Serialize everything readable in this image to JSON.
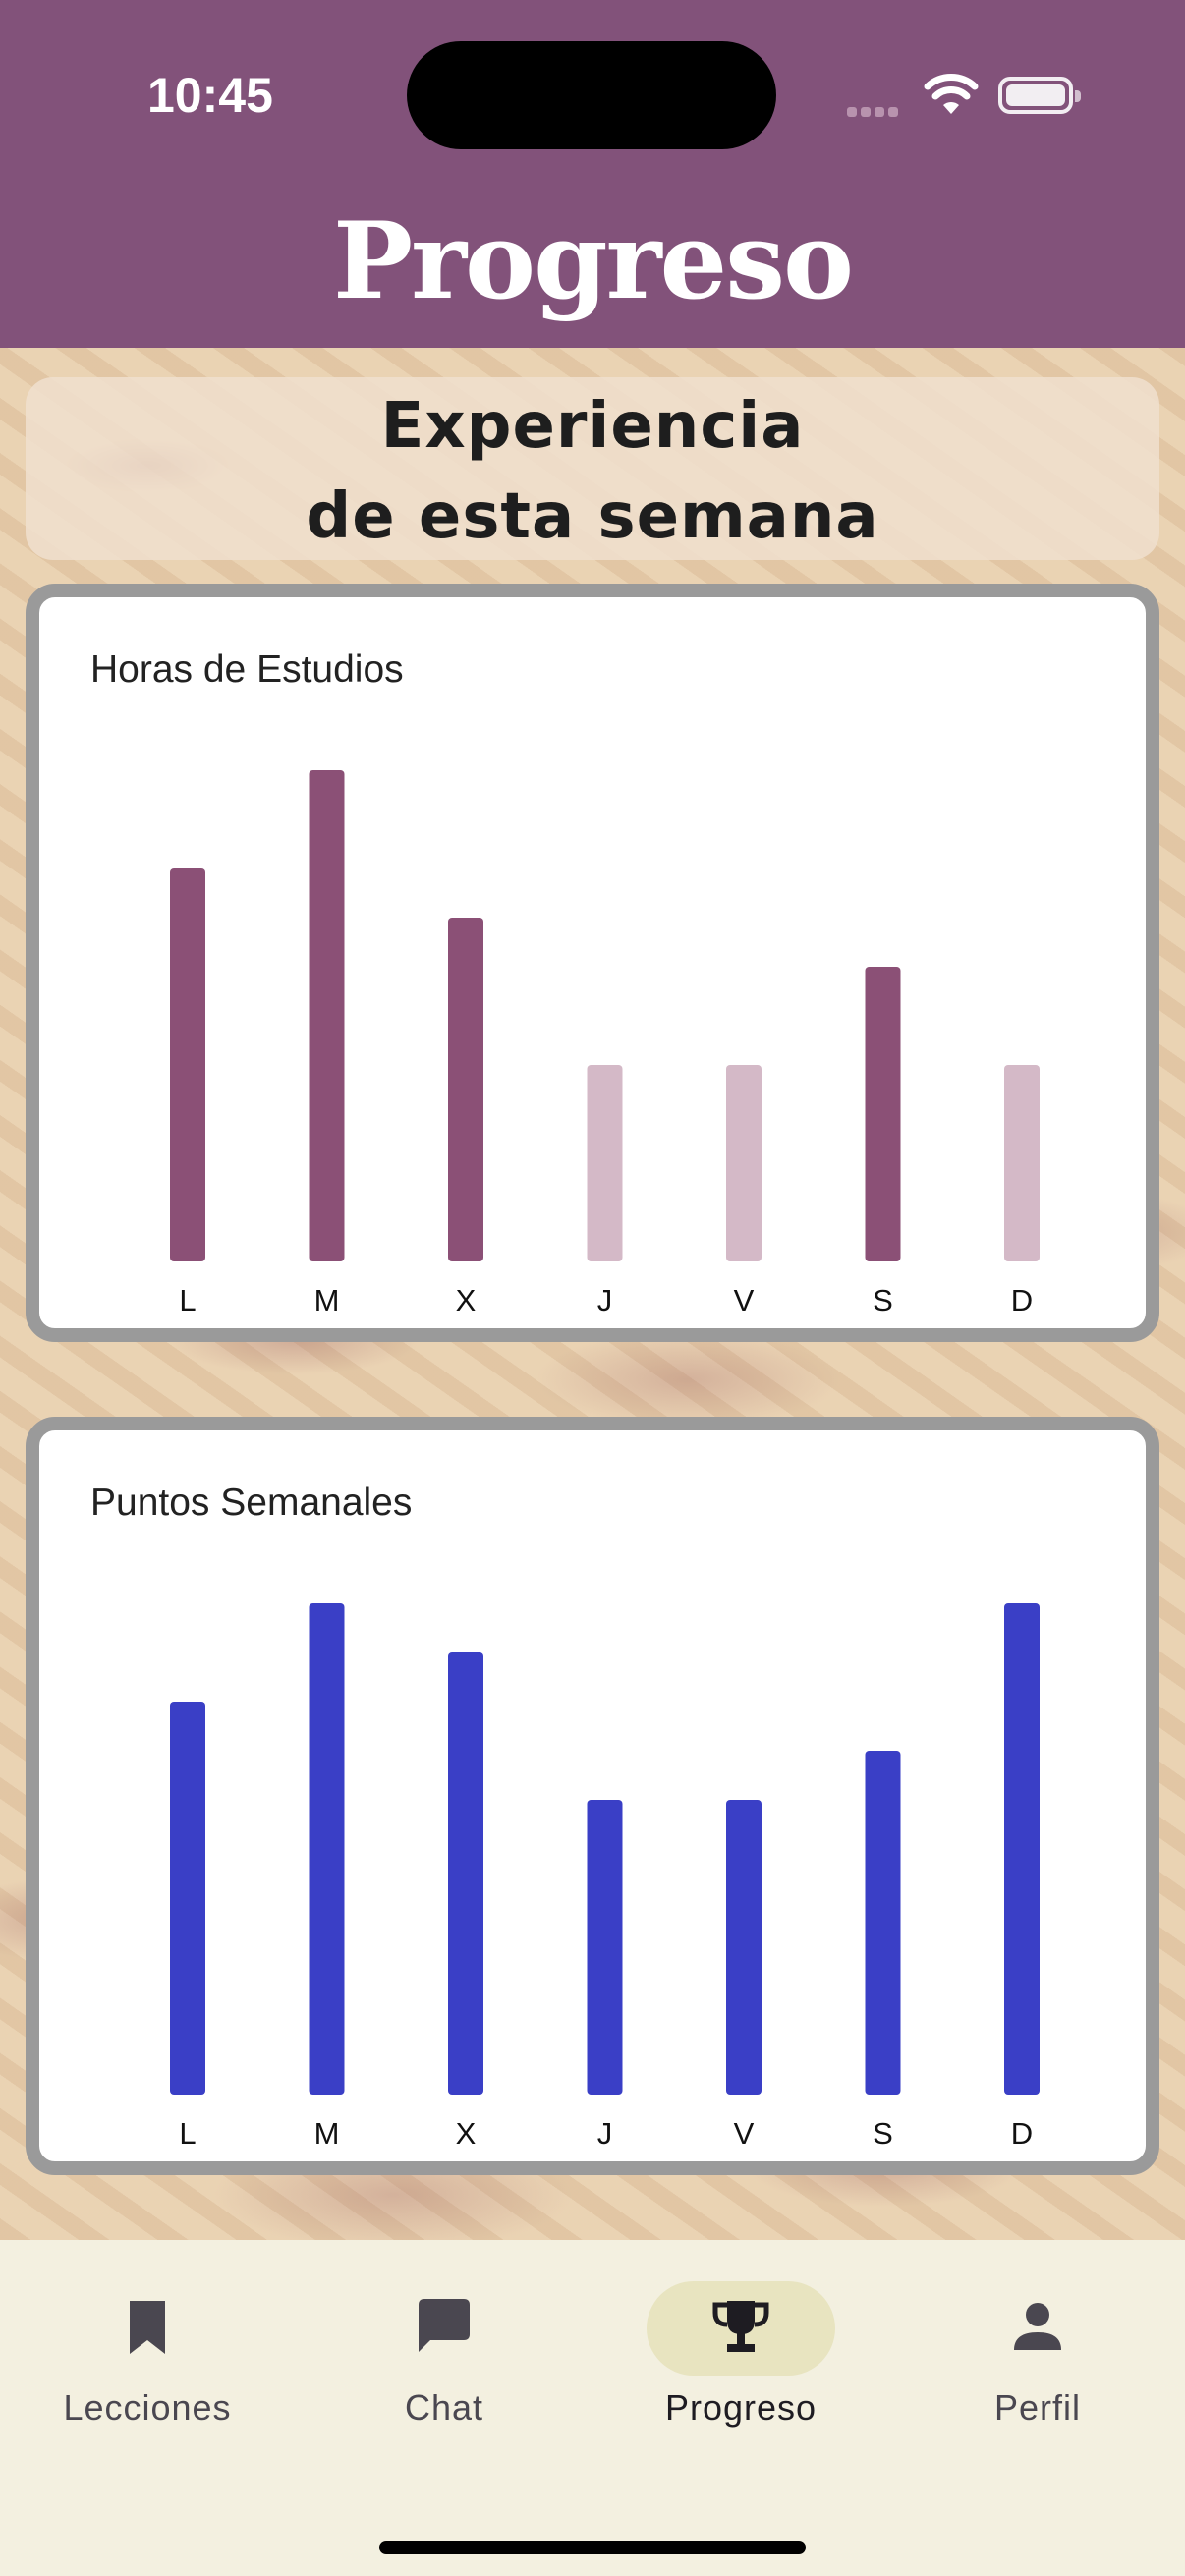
{
  "status_bar": {
    "time": "10:45"
  },
  "header": {
    "title": "Progreso",
    "bg_color": "#82527a"
  },
  "banner": {
    "line1": "Experiencia",
    "line2": "de esta semana"
  },
  "charts": [
    {
      "id": "horas",
      "title": "Horas de Estudios",
      "chart_data": {
        "type": "bar",
        "title": "Horas de Estudios",
        "categories": [
          "L",
          "M",
          "X",
          "J",
          "V",
          "S",
          "D"
        ],
        "values": [
          8,
          10,
          7,
          4,
          4,
          6,
          4
        ],
        "ylim": [
          0,
          10
        ],
        "grid": false,
        "bar_colors": [
          "#8b5076",
          "#8b5076",
          "#8b5076",
          "#d4b9c7",
          "#d4b9c7",
          "#8b5076",
          "#d4b9c7"
        ]
      }
    },
    {
      "id": "puntos",
      "title": "Puntos Semanales",
      "chart_data": {
        "type": "bar",
        "title": "Puntos Semanales",
        "categories": [
          "L",
          "M",
          "X",
          "J",
          "V",
          "S",
          "D"
        ],
        "values": [
          8,
          10,
          9,
          6,
          6,
          7,
          10
        ],
        "ylim": [
          0,
          10
        ],
        "grid": false,
        "bar_colors": [
          "#3a3fc6",
          "#3a3fc6",
          "#3a3fc6",
          "#3a3fc6",
          "#3a3fc6",
          "#3a3fc6",
          "#3a3fc6"
        ]
      }
    }
  ],
  "nav": {
    "items": [
      {
        "label": "Lecciones",
        "icon": "bookmark-icon",
        "active": false
      },
      {
        "label": "Chat",
        "icon": "chat-bubble-icon",
        "active": false
      },
      {
        "label": "Progreso",
        "icon": "trophy-icon",
        "active": true
      },
      {
        "label": "Perfil",
        "icon": "person-icon",
        "active": false
      }
    ]
  }
}
